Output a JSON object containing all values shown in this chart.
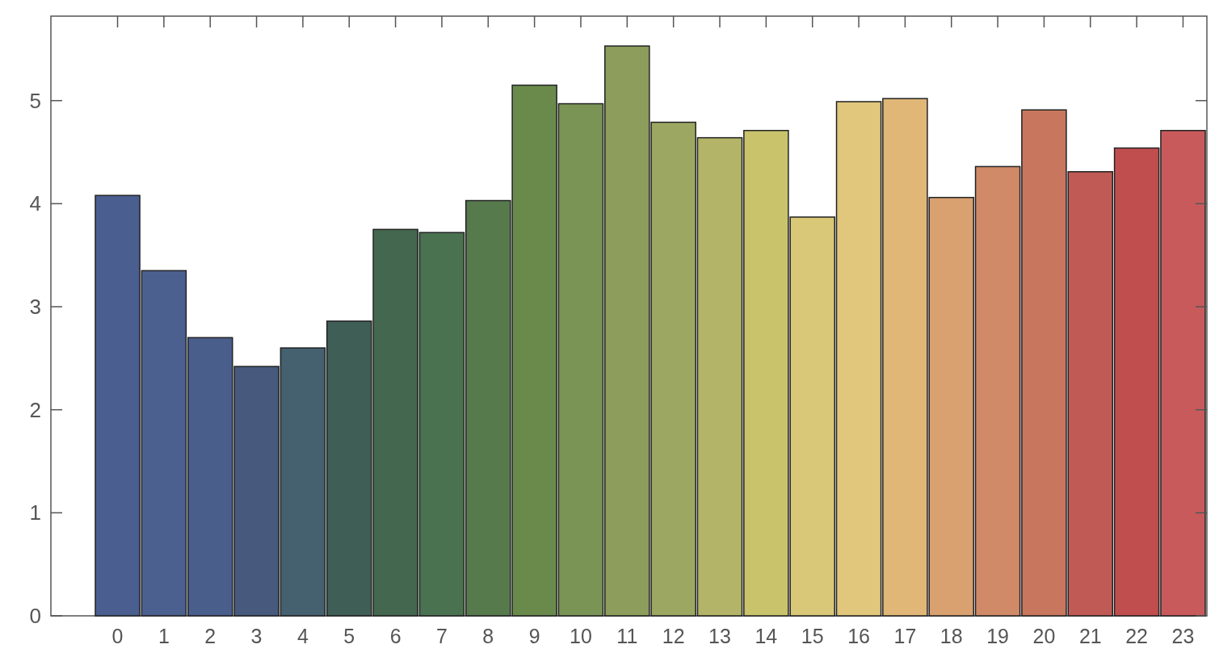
{
  "chart_data": {
    "type": "bar",
    "categories": [
      "0",
      "1",
      "2",
      "3",
      "4",
      "5",
      "6",
      "7",
      "8",
      "9",
      "10",
      "11",
      "12",
      "13",
      "14",
      "15",
      "16",
      "17",
      "18",
      "19",
      "20",
      "21",
      "22",
      "23"
    ],
    "values": [
      4.08,
      3.35,
      2.7,
      2.42,
      2.6,
      2.86,
      3.75,
      3.72,
      4.03,
      5.15,
      4.97,
      5.53,
      4.79,
      4.64,
      4.71,
      3.87,
      4.99,
      5.02,
      4.06,
      4.36,
      4.91,
      4.31,
      4.54,
      4.71
    ],
    "colors": [
      "#4a5f8f",
      "#4c6090",
      "#4a5e8c",
      "#475a7e",
      "#45606e",
      "#3f5e55",
      "#44684f",
      "#4a7250",
      "#577a4c",
      "#6a8a4c",
      "#7a9456",
      "#8c9d5c",
      "#9ca862",
      "#b3b468",
      "#c9c46c",
      "#d8c877",
      "#e0c77c",
      "#e1b778",
      "#d9a070",
      "#d08a68",
      "#c8765e",
      "#bf5a55",
      "#c04e4e",
      "#c85a5c"
    ],
    "ylim": [
      0,
      5.82
    ],
    "yticks": [
      0,
      1,
      2,
      3,
      4,
      5
    ],
    "grid": false
  }
}
